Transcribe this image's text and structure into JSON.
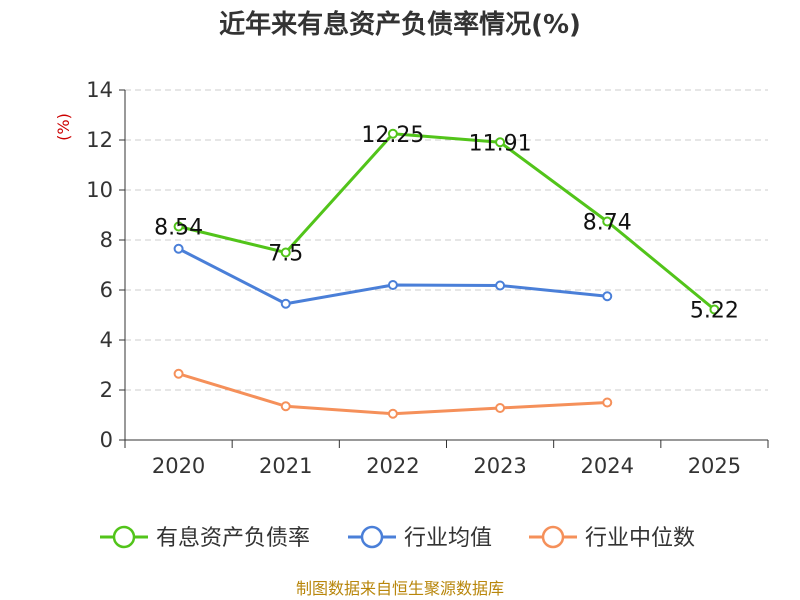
{
  "chart_data": {
    "type": "line",
    "title": "近年来有息资产负债率情况(%)",
    "ylabel": "(%)",
    "xlabel": "",
    "categories": [
      "2020",
      "2021",
      "2022",
      "2023",
      "2024",
      "2025"
    ],
    "ylim": [
      0,
      14
    ],
    "yticks": [
      "0",
      "2",
      "4",
      "6",
      "8",
      "10",
      "12",
      "14"
    ],
    "grid": true,
    "legend_position": "bottom",
    "series": [
      {
        "name": "有息资产负债率",
        "color": "#52c41a",
        "values": [
          8.54,
          7.5,
          12.25,
          11.91,
          8.74,
          5.22
        ],
        "labels": [
          "8.54",
          "7.5",
          "12.25",
          "11.91",
          "8.74",
          "5.22"
        ]
      },
      {
        "name": "行业均值",
        "color": "#4a7fd8",
        "values": [
          7.65,
          5.45,
          6.2,
          6.18,
          5.75,
          null
        ]
      },
      {
        "name": "行业中位数",
        "color": "#f5905a",
        "values": [
          2.65,
          1.35,
          1.05,
          1.28,
          1.5,
          null
        ]
      }
    ]
  },
  "source": "制图数据来自恒生聚源数据库"
}
